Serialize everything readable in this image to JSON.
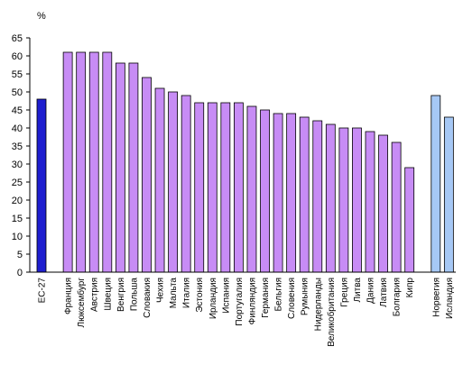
{
  "chart_data": {
    "type": "bar",
    "unit_label": "%",
    "ylim": [
      0,
      65
    ],
    "y_ticks": [
      0,
      5,
      10,
      15,
      20,
      25,
      30,
      35,
      40,
      45,
      50,
      55,
      60,
      65
    ],
    "grid": false,
    "groups": [
      {
        "categories": [
          "ЕС-27"
        ],
        "values": [
          48
        ],
        "color": "#1f1fcf"
      },
      {
        "categories": [
          "Франция",
          "Люксембург",
          "Австрия",
          "Швеция",
          "Венгрия",
          "Польша",
          "Словакия",
          "Чехия",
          "Мальта",
          "Италия",
          "Эстония",
          "Ирландия",
          "Испания",
          "Португалия",
          "Финляндия",
          "Германия",
          "Бельгия",
          "Словения",
          "Румыния",
          "Нидерланды",
          "Великобритания",
          "Греция",
          "Литва",
          "Дания",
          "Латвия",
          "Болгария",
          "Кипр"
        ],
        "values": [
          61,
          61,
          61,
          61,
          58,
          58,
          54,
          51,
          50,
          49,
          47,
          47,
          47,
          47,
          46,
          45,
          44,
          44,
          43,
          42,
          41,
          40,
          40,
          39,
          38,
          36,
          29
        ],
        "color": "#c78cf5"
      },
      {
        "categories": [
          "Норвегия",
          "Исландия"
        ],
        "values": [
          49,
          43
        ],
        "color": "#a6c8f5"
      }
    ]
  }
}
